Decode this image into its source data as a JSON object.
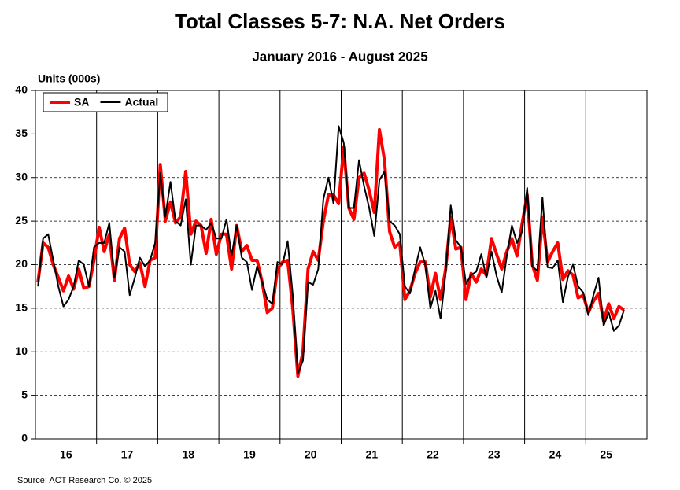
{
  "chart_data": {
    "type": "line",
    "title": "Total Classes 5-7: N.A. Net Orders",
    "subtitle": "January 2016 - August 2025",
    "y_label": "Units (000s)",
    "source": "Source: ACT Research Co. © 2025",
    "categories": [
      null,
      null,
      null,
      null,
      null,
      null,
      "16",
      null,
      null,
      null,
      null,
      null,
      null,
      null,
      null,
      null,
      null,
      null,
      "17",
      null,
      null,
      null,
      null,
      null,
      null,
      null,
      null,
      null,
      null,
      null,
      "18",
      null,
      null,
      null,
      null,
      null,
      null,
      null,
      null,
      null,
      null,
      null,
      "19",
      null,
      null,
      null,
      null,
      null,
      null,
      null,
      null,
      null,
      null,
      null,
      "20",
      null,
      null,
      null,
      null,
      null,
      null,
      null,
      null,
      null,
      null,
      null,
      "21",
      null,
      null,
      null,
      null,
      null,
      null,
      null,
      null,
      null,
      null,
      null,
      "22",
      null,
      null,
      null,
      null,
      null,
      null,
      null,
      null,
      null,
      null,
      null,
      "23",
      null,
      null,
      null,
      null,
      null,
      null,
      null,
      null,
      null,
      null,
      null,
      "24",
      null,
      null,
      null,
      null,
      null,
      null,
      null,
      null,
      null,
      "25",
      null,
      null,
      null
    ],
    "series": [
      {
        "name": "SA",
        "color": "#ff0000",
        "values": [
          18,
          22.5,
          22,
          20,
          18.5,
          17,
          18.7,
          17.2,
          19.5,
          17.3,
          17.5,
          20.5,
          24.3,
          21.5,
          23.5,
          18.2,
          23,
          24.2,
          20,
          19.2,
          20.2,
          17.5,
          20.5,
          20.8,
          31.5,
          25,
          27.2,
          24.8,
          25.5,
          30.7,
          23.5,
          25,
          24.5,
          21.3,
          25.2,
          21.2,
          23.5,
          23.5,
          19.5,
          24.5,
          21.5,
          22.2,
          20.5,
          20.5,
          18,
          14.5,
          15,
          19.5,
          20.3,
          20.5,
          15,
          7.2,
          10,
          19.5,
          21.5,
          20.5,
          25,
          28,
          28,
          27,
          33.5,
          26.5,
          25.2,
          30,
          30.5,
          28.5,
          26,
          35.5,
          32,
          23.8,
          22,
          22.5,
          16,
          17,
          19,
          20.3,
          20.3,
          16.3,
          19,
          16,
          19.5,
          25.5,
          21.8,
          22,
          16,
          19,
          18,
          19.5,
          18.8,
          23,
          21.2,
          19.5,
          21.5,
          23,
          21,
          24.7,
          28,
          20,
          18.2,
          25.5,
          20.3,
          21.5,
          22.5,
          18.3,
          19.3,
          18.8,
          16.2,
          16.5,
          14.5,
          15.8,
          16.7,
          13.5,
          15.5,
          13.8,
          15.2,
          14.8
        ]
      },
      {
        "name": "Actual",
        "color": "#000000",
        "values": [
          17.5,
          23,
          23.5,
          20.5,
          17.5,
          15.2,
          16,
          17.5,
          20.5,
          20,
          17.5,
          22,
          22.5,
          22.5,
          24.8,
          18.5,
          22,
          21.5,
          16.5,
          18.5,
          20.8,
          19.8,
          20.5,
          22.5,
          30.5,
          25.5,
          29.5,
          25,
          24.5,
          27.5,
          20,
          24.5,
          24.5,
          24,
          24.8,
          23,
          23,
          25.2,
          21,
          24.5,
          20.8,
          20.3,
          17.1,
          19.8,
          18,
          16,
          15.5,
          20.3,
          20,
          22.7,
          16.5,
          7.5,
          9,
          18,
          17.7,
          19.5,
          27.5,
          30,
          27,
          35.9,
          34,
          26.5,
          26.5,
          32,
          29,
          26.5,
          23.3,
          29.7,
          30.7,
          25,
          24.5,
          23.5,
          17.5,
          16.7,
          19.5,
          22,
          20,
          15,
          17,
          13.8,
          19,
          26.8,
          22.8,
          22,
          17.8,
          18.8,
          19.2,
          21.2,
          18.5,
          21.5,
          18.7,
          16.8,
          21,
          24.5,
          22.5,
          23.8,
          28.8,
          19.8,
          19.3,
          27.7,
          19.7,
          19.6,
          20.5,
          15.7,
          18.6,
          20,
          17.5,
          16.8,
          14.2,
          16.5,
          18.5,
          13,
          14.5,
          12.4,
          13,
          14.8
        ]
      }
    ],
    "ylim": [
      0,
      40
    ],
    "yticks": [
      0,
      5,
      10,
      15,
      20,
      25,
      30,
      35,
      40
    ],
    "grid": true,
    "legend": "upper left"
  }
}
